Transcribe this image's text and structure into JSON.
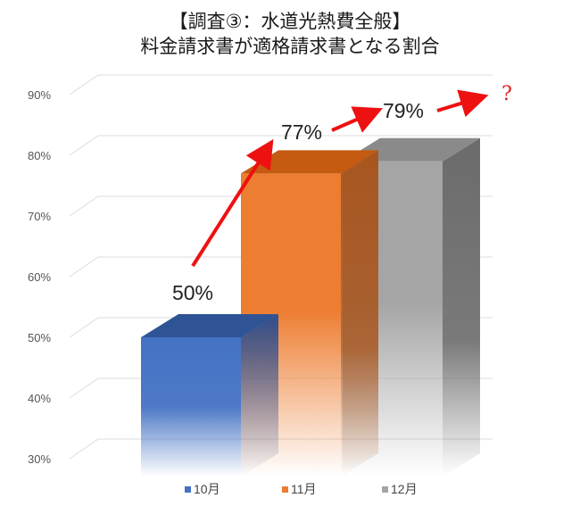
{
  "chart_data": {
    "type": "bar",
    "title_line1": "【調査③：水道光熱費全般】",
    "title_line2": "料金請求書が適格請求書となる割合",
    "categories": [
      "10月",
      "11月",
      "12月"
    ],
    "values": [
      50,
      77,
      79
    ],
    "value_labels": [
      "50%",
      "77%",
      "79%"
    ],
    "annotation": "?",
    "y_ticks": [
      "90%",
      "80%",
      "70%",
      "60%",
      "50%",
      "40%",
      "30%"
    ],
    "ylim": [
      30,
      90
    ],
    "grid": true,
    "legend_position": "bottom",
    "colors": {
      "10月": "#4472c4",
      "11月": "#ed7d31",
      "12月": "#a5a5a5",
      "arrow": "#ee1111"
    }
  }
}
